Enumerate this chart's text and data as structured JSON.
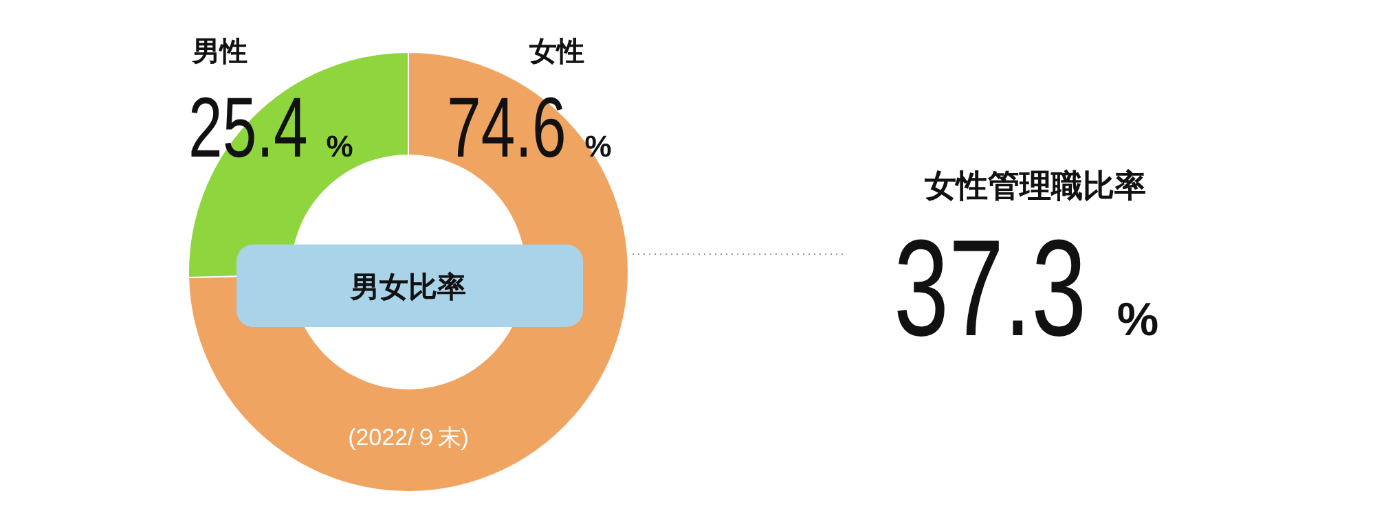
{
  "chart_data": {
    "type": "donut",
    "title": "男女比率",
    "subtitle": "(2022/９末)",
    "categories": [
      "女性",
      "男性"
    ],
    "values": [
      74.6,
      25.4
    ],
    "colors": [
      "#f0a462",
      "#8fd53d"
    ],
    "value_labels": [
      "74.6%",
      "25.4%"
    ],
    "annotations": [
      "女性管理職比率",
      "37.3%"
    ]
  }
}
